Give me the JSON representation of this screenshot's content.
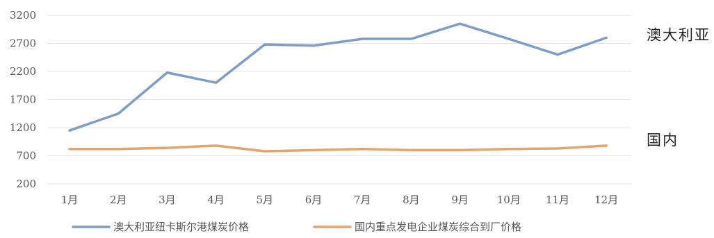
{
  "chart_data": {
    "type": "line",
    "categories": [
      "1月",
      "2月",
      "3月",
      "4月",
      "5月",
      "6月",
      "7月",
      "8月",
      "9月",
      "10月",
      "11月",
      "12月"
    ],
    "ylim": [
      200,
      3200
    ],
    "yticks": [
      200,
      700,
      1200,
      1700,
      2200,
      2700,
      3200
    ],
    "grid": true,
    "legend_position": "bottom",
    "series": [
      {
        "name": "澳大利亚纽卡斯尔港煤炭价格",
        "end_label": "澳大利亚",
        "color": "#7f9dc4",
        "values": [
          1150,
          1450,
          2180,
          2000,
          2680,
          2660,
          2780,
          2780,
          3050,
          2780,
          2500,
          2800
        ]
      },
      {
        "name": "国内重点发电企业煤炭综合到厂价格",
        "end_label": "国内",
        "color": "#e3a46f",
        "values": [
          820,
          820,
          840,
          880,
          780,
          800,
          820,
          800,
          800,
          820,
          830,
          880
        ]
      }
    ]
  }
}
